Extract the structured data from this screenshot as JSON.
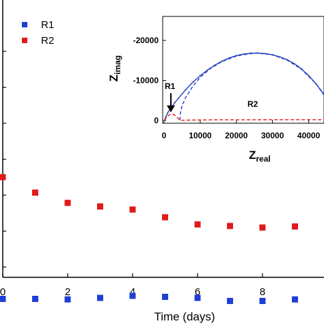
{
  "chart_data": [
    {
      "type": "scatter",
      "title": "",
      "xlabel": "Time (days)",
      "ylabel": "",
      "xlim": [
        0,
        9.6
      ],
      "x_ticks": [
        0,
        2,
        4,
        6,
        8
      ],
      "x_tick_labels": [
        "0",
        "2",
        "4",
        "6",
        "8"
      ],
      "legend": "top-left",
      "grid": false,
      "series": [
        {
          "name": "R1",
          "color": "#1f3fd6",
          "marker": "square",
          "x": [
            0,
            1,
            2,
            3,
            4,
            5,
            6,
            7,
            8,
            9
          ],
          "y": [
            0.18,
            0.18,
            0.17,
            0.2,
            0.24,
            0.22,
            0.2,
            0.14,
            0.14,
            0.17
          ]
        },
        {
          "name": "R2",
          "color": "#e01b1b",
          "marker": "square",
          "x": [
            0,
            1,
            2,
            3,
            4,
            5,
            6,
            7,
            8,
            9
          ],
          "y": [
            2.55,
            2.25,
            2.05,
            1.98,
            1.92,
            1.77,
            1.63,
            1.6,
            1.57,
            1.59
          ]
        }
      ]
    },
    {
      "type": "line",
      "title": "",
      "xlabel": "Zreal",
      "ylabel": "Zimag",
      "xlabel_main": "Z",
      "xlabel_sub": "real",
      "ylabel_main": "Z",
      "ylabel_sub": "imag",
      "xlim": [
        0,
        45500
      ],
      "ylim": [
        0,
        -24000
      ],
      "x_ticks": [
        0,
        10000,
        20000,
        30000,
        40000
      ],
      "x_tick_labels": [
        "0",
        "10000",
        "20000",
        "30000",
        "40000"
      ],
      "y_ticks": [
        0,
        -10000,
        -20000
      ],
      "y_tick_labels": [
        "0",
        "-10000",
        "-20000"
      ],
      "annotations": [
        {
          "text": "R1",
          "color": "#000000",
          "x": 2000,
          "y": -2000
        },
        {
          "text": "R2",
          "color": "#e01b1b",
          "x": 23000,
          "y": -4000
        }
      ],
      "series": [
        {
          "name": "",
          "color": "#1f3fd6",
          "style": "solid-with-dots",
          "points": [
            [
              100,
              0
            ],
            [
              500,
              -900
            ],
            [
              1000,
              -1900
            ],
            [
              2000,
              -3300
            ],
            [
              3000,
              -4500
            ],
            [
              4000,
              -5600
            ],
            [
              6000,
              -7700
            ],
            [
              8000,
              -9600
            ],
            [
              10000,
              -11200
            ],
            [
              12000,
              -12600
            ],
            [
              14000,
              -13800
            ],
            [
              16000,
              -14800
            ],
            [
              18000,
              -15600
            ],
            [
              20000,
              -16200
            ],
            [
              22000,
              -16600
            ],
            [
              24000,
              -16800
            ],
            [
              26000,
              -16850
            ],
            [
              28000,
              -16700
            ],
            [
              30000,
              -16400
            ],
            [
              32000,
              -15900
            ],
            [
              34000,
              -15200
            ],
            [
              36000,
              -14200
            ],
            [
              38000,
              -12900
            ],
            [
              40000,
              -11200
            ],
            [
              42000,
              -9200
            ],
            [
              44000,
              -6800
            ],
            [
              45500,
              -4800
            ]
          ]
        },
        {
          "name": "",
          "color": "#e01b1b",
          "style": "dashed",
          "points": [
            [
              100,
              0
            ],
            [
              800,
              -900
            ],
            [
              1600,
              -1500
            ],
            [
              2400,
              -1600
            ],
            [
              3200,
              -1200
            ],
            [
              3800,
              -600
            ],
            [
              4200,
              -250
            ],
            [
              4500,
              -80
            ],
            [
              5200,
              -60
            ],
            [
              8000,
              -120
            ],
            [
              15000,
              -180
            ],
            [
              25000,
              -190
            ],
            [
              35000,
              -200
            ],
            [
              45500,
              -210
            ]
          ]
        },
        {
          "name": "",
          "color": "#1f3fd6",
          "style": "dashed",
          "points": [
            [
              4400,
              -100
            ],
            [
              4500,
              -1800
            ],
            [
              5000,
              -3700
            ],
            [
              6000,
              -5800
            ],
            [
              8000,
              -8600
            ],
            [
              10000,
              -10800
            ],
            [
              13000,
              -13100
            ],
            [
              16000,
              -14700
            ],
            [
              20000,
              -16100
            ],
            [
              24000,
              -16700
            ],
            [
              26000,
              -16800
            ],
            [
              30000,
              -16400
            ],
            [
              34000,
              -15100
            ],
            [
              38000,
              -12800
            ],
            [
              42000,
              -9200
            ],
            [
              45500,
              -4700
            ]
          ]
        }
      ]
    }
  ]
}
